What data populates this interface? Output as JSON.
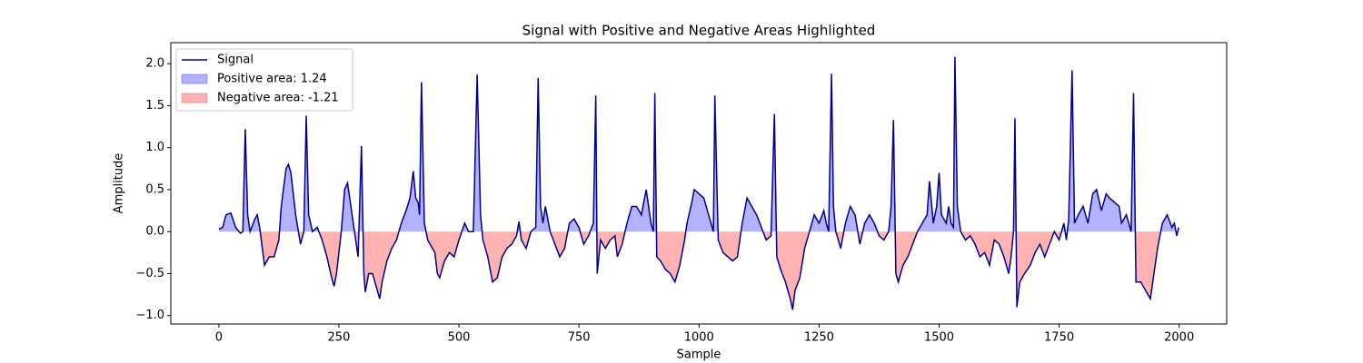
{
  "chart_data": {
    "type": "line",
    "title": "Signal with Positive and Negative Areas Highlighted",
    "xlabel": "Sample",
    "ylabel": "Amplitude",
    "xlim": [
      -100,
      2099
    ],
    "xticks": [
      0,
      250,
      500,
      750,
      1000,
      1250,
      1500,
      1750,
      2000
    ],
    "ylim": [
      -1.1,
      2.25
    ],
    "yticks": [
      {
        "value": -1.0,
        "label": "−1.0"
      },
      {
        "value": -0.5,
        "label": "−0.5"
      },
      {
        "value": 0,
        "label": "0.0"
      },
      {
        "value": 0.5,
        "label": "0.5"
      },
      {
        "value": 1,
        "label": "1.0"
      },
      {
        "value": 1.5,
        "label": "1.5"
      },
      {
        "value": 2,
        "label": "2.0"
      }
    ],
    "grid": false,
    "legend": "upper left",
    "x": [
      0,
      8,
      15,
      25,
      35,
      45,
      50,
      55,
      60,
      65,
      75,
      80,
      85,
      95,
      105,
      115,
      125,
      130,
      140,
      145,
      150,
      160,
      170,
      177,
      182,
      187,
      195,
      205,
      215,
      225,
      235,
      240,
      245,
      255,
      262,
      268,
      275,
      285,
      290,
      297,
      302,
      305,
      312,
      320,
      330,
      335,
      340,
      350,
      360,
      370,
      380,
      390,
      398,
      405,
      410,
      415,
      418,
      422,
      428,
      435,
      445,
      450,
      455,
      460,
      470,
      480,
      490,
      500,
      512,
      520,
      530,
      538,
      545,
      550,
      560,
      570,
      580,
      590,
      600,
      610,
      620,
      625,
      630,
      640,
      650,
      660,
      665,
      670,
      675,
      680,
      690,
      700,
      710,
      720,
      730,
      740,
      750,
      760,
      770,
      780,
      785,
      788,
      795,
      805,
      815,
      825,
      830,
      840,
      850,
      860,
      870,
      880,
      890,
      900,
      905,
      908,
      912,
      920,
      930,
      940,
      950,
      960,
      970,
      975,
      985,
      990,
      1000,
      1010,
      1020,
      1030,
      1033,
      1040,
      1050,
      1060,
      1070,
      1080,
      1090,
      1100,
      1110,
      1120,
      1130,
      1140,
      1150,
      1157,
      1162,
      1170,
      1180,
      1190,
      1195,
      1200,
      1210,
      1220,
      1230,
      1240,
      1250,
      1260,
      1265,
      1270,
      1276,
      1280,
      1285,
      1295,
      1305,
      1315,
      1325,
      1335,
      1345,
      1355,
      1365,
      1375,
      1385,
      1395,
      1400,
      1405,
      1410,
      1415,
      1425,
      1435,
      1445,
      1455,
      1465,
      1475,
      1480,
      1488,
      1495,
      1500,
      1505,
      1515,
      1520,
      1525,
      1530,
      1533,
      1538,
      1545,
      1555,
      1565,
      1575,
      1585,
      1595,
      1605,
      1615,
      1625,
      1635,
      1645,
      1650,
      1655,
      1658,
      1662,
      1668,
      1678,
      1690,
      1700,
      1710,
      1720,
      1730,
      1740,
      1750,
      1760,
      1765,
      1770,
      1777,
      1782,
      1790,
      1800,
      1810,
      1820,
      1828,
      1838,
      1848,
      1855,
      1865,
      1875,
      1880,
      1890,
      1900,
      1905,
      1910,
      1920,
      1930,
      1940,
      1945,
      1955,
      1965,
      1975,
      1985,
      1990,
      1995,
      1999
    ],
    "series": [
      {
        "name": "Signal",
        "color": "#00008b",
        "values": [
          0.03,
          0.05,
          0.2,
          0.22,
          0.05,
          -0.02,
          0.0,
          1.22,
          0.2,
          0.0,
          0.15,
          0.2,
          0.05,
          -0.4,
          -0.3,
          -0.3,
          -0.1,
          0.3,
          0.75,
          0.8,
          0.7,
          0.2,
          -0.15,
          0.0,
          1.38,
          0.2,
          0.0,
          0.05,
          -0.1,
          -0.3,
          -0.55,
          -0.65,
          -0.5,
          0.0,
          0.5,
          0.58,
          0.3,
          -0.1,
          -0.3,
          1.02,
          -0.5,
          -0.72,
          -0.5,
          -0.5,
          -0.7,
          -0.8,
          -0.6,
          -0.35,
          -0.2,
          -0.1,
          0.1,
          0.25,
          0.4,
          0.72,
          0.4,
          0.35,
          0.2,
          1.78,
          0.1,
          -0.1,
          -0.2,
          -0.25,
          -0.5,
          -0.55,
          -0.35,
          -0.25,
          -0.3,
          -0.1,
          0.1,
          0.0,
          0.0,
          1.87,
          0.2,
          -0.1,
          -0.3,
          -0.6,
          -0.55,
          -0.3,
          -0.2,
          -0.15,
          -0.05,
          0.12,
          -0.1,
          -0.2,
          0.0,
          0.05,
          1.83,
          0.3,
          0.1,
          0.3,
          0.0,
          -0.15,
          -0.3,
          -0.2,
          0.1,
          0.15,
          0.05,
          -0.15,
          -0.05,
          0.1,
          1.62,
          -0.5,
          -0.1,
          -0.2,
          -0.1,
          -0.05,
          -0.3,
          -0.15,
          0.1,
          0.3,
          0.3,
          0.2,
          0.5,
          0.1,
          0.0,
          1.65,
          -0.3,
          -0.35,
          -0.45,
          -0.5,
          -0.6,
          -0.4,
          -0.1,
          0.1,
          0.35,
          0.5,
          0.45,
          0.4,
          0.2,
          0.0,
          1.62,
          -0.1,
          -0.25,
          -0.3,
          -0.35,
          -0.3,
          0.1,
          0.4,
          0.3,
          0.2,
          0.05,
          -0.1,
          -0.05,
          1.4,
          -0.3,
          -0.45,
          -0.6,
          -0.8,
          -0.93,
          -0.7,
          -0.55,
          -0.2,
          0.0,
          0.2,
          0.1,
          0.25,
          0.1,
          0.0,
          1.88,
          0.3,
          0.0,
          -0.2,
          0.1,
          0.3,
          0.2,
          -0.15,
          0.1,
          0.2,
          0.1,
          -0.05,
          -0.1,
          0.0,
          0.3,
          1.33,
          -0.5,
          -0.6,
          -0.4,
          -0.3,
          -0.15,
          0.0,
          0.1,
          0.2,
          0.6,
          0.1,
          0.3,
          0.7,
          0.2,
          0.1,
          0.3,
          0.1,
          0.05,
          2.08,
          0.3,
          0.0,
          -0.1,
          -0.05,
          -0.15,
          -0.3,
          -0.25,
          -0.4,
          -0.1,
          -0.15,
          -0.3,
          -0.5,
          -0.3,
          0.0,
          1.35,
          -0.9,
          -0.6,
          -0.5,
          -0.4,
          -0.25,
          -0.15,
          -0.3,
          -0.15,
          0.0,
          -0.1,
          0.1,
          -0.1,
          0.15,
          1.92,
          0.1,
          0.2,
          0.3,
          0.1,
          0.45,
          0.5,
          0.25,
          0.45,
          0.4,
          0.35,
          0.3,
          0.1,
          0.2,
          0.0,
          1.65,
          -0.6,
          -0.6,
          -0.7,
          -0.8,
          -0.6,
          -0.2,
          0.1,
          0.2,
          0.05,
          0.1,
          -0.05,
          0.05
        ]
      }
    ],
    "areas": [
      {
        "name": "Positive area: 1.24",
        "color": "blue",
        "alpha": 0.3,
        "side": "positive"
      },
      {
        "name": "Negative area: -1.21",
        "color": "red",
        "alpha": 0.3,
        "side": "negative"
      }
    ]
  }
}
